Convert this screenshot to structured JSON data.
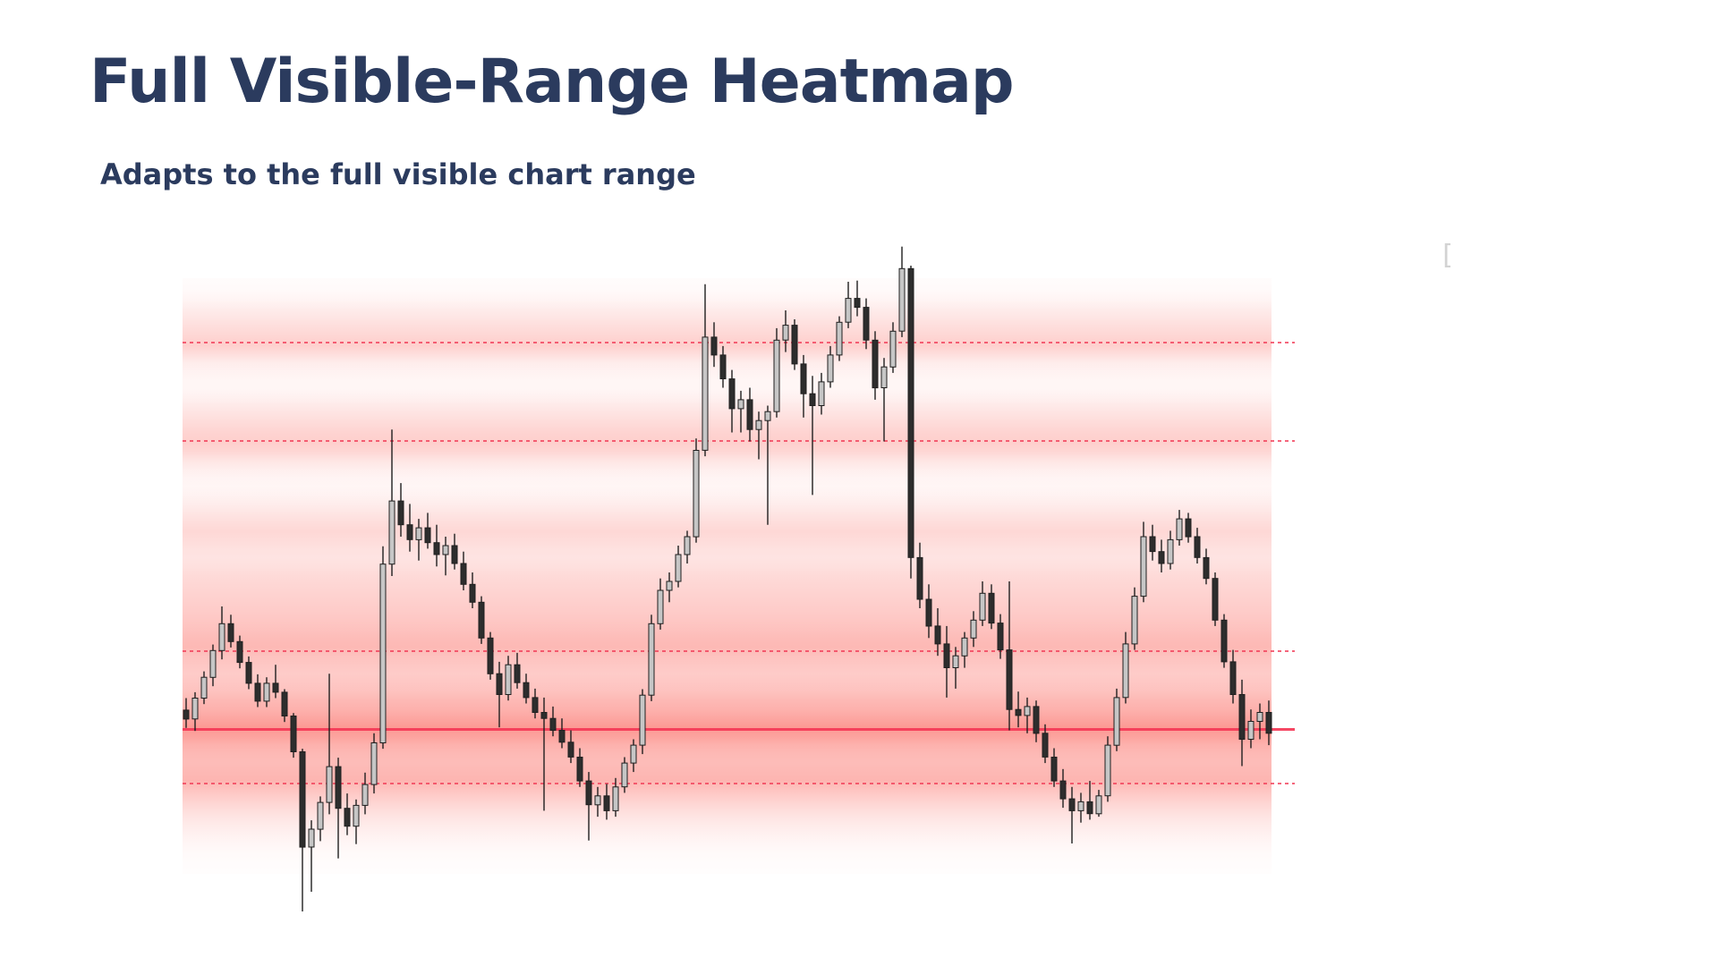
{
  "header": {
    "title": "Full Visible-Range Heatmap",
    "subtitle": "Adapts to the full visible chart range"
  },
  "misc": {
    "bracket_glyph": "["
  },
  "colors": {
    "title_text": "#2b3b5e",
    "heat_rgb": "250,70,60",
    "level_line_dotted": "rgba(242,63,90,0.8)",
    "level_line_solid": "rgba(244,56,86,0.92)",
    "candle_up_fill": "#c6c6c6",
    "candle_down_fill": "#2d2d2d",
    "candle_stroke": "#1f1f1f"
  },
  "chart_data": {
    "type": "heatmap",
    "overlay": "candlestick",
    "title": "Full Visible-Range Heatmap",
    "xlabel": "",
    "ylabel": "",
    "y_scale": "normalized 0-100 (no axis labels visible in chart)",
    "ylim": [
      0,
      100
    ],
    "grid": false,
    "legend": false,
    "levels": [
      {
        "price": 89.2,
        "style": "dotted"
      },
      {
        "price": 72.7,
        "style": "dotted"
      },
      {
        "price": 37.4,
        "style": "dotted"
      },
      {
        "price": 24.3,
        "style": "solid"
      },
      {
        "price": 15.2,
        "style": "dotted"
      }
    ],
    "heat_intensity_rows_top_to_bottom": [
      0.02,
      0.03,
      0.06,
      0.1,
      0.14,
      0.18,
      0.22,
      0.26,
      0.18,
      0.1,
      0.07,
      0.05,
      0.05,
      0.08,
      0.12,
      0.16,
      0.2,
      0.24,
      0.26,
      0.22,
      0.14,
      0.09,
      0.06,
      0.05,
      0.07,
      0.1,
      0.14,
      0.18,
      0.21,
      0.19,
      0.16,
      0.15,
      0.17,
      0.2,
      0.22,
      0.24,
      0.26,
      0.28,
      0.3,
      0.33,
      0.36,
      0.38,
      0.33,
      0.3,
      0.28,
      0.3,
      0.33,
      0.38,
      0.42,
      0.48,
      0.55,
      0.5,
      0.42,
      0.38,
      0.36,
      0.38,
      0.4,
      0.32,
      0.26,
      0.2,
      0.15,
      0.11,
      0.08,
      0.05,
      0.03,
      0.02,
      0.01
    ],
    "candles_ohlc": [
      [
        27.5,
        29.5,
        24.5,
        26.0
      ],
      [
        26.0,
        30.5,
        24.0,
        29.5
      ],
      [
        29.5,
        34.0,
        28.5,
        33.0
      ],
      [
        33.0,
        38.5,
        31.5,
        37.5
      ],
      [
        37.5,
        44.9,
        36.0,
        42.0
      ],
      [
        42.0,
        43.5,
        38.0,
        39.0
      ],
      [
        39.0,
        40.0,
        34.5,
        35.5
      ],
      [
        35.5,
        36.5,
        31.0,
        32.0
      ],
      [
        32.0,
        33.5,
        28.0,
        29.0
      ],
      [
        29.0,
        33.0,
        28.0,
        32.0
      ],
      [
        32.0,
        35.1,
        29.5,
        30.5
      ],
      [
        30.5,
        31.0,
        25.5,
        26.5
      ],
      [
        26.5,
        27.0,
        19.5,
        20.5
      ],
      [
        20.5,
        21.0,
        -6.3,
        4.5
      ],
      [
        4.5,
        9.0,
        -3.0,
        7.5
      ],
      [
        7.5,
        13.0,
        5.5,
        12.0
      ],
      [
        12.0,
        33.6,
        10.0,
        18.0
      ],
      [
        18.0,
        19.5,
        2.6,
        11.0
      ],
      [
        11.0,
        13.5,
        6.5,
        8.0
      ],
      [
        8.0,
        12.5,
        5.0,
        11.5
      ],
      [
        11.5,
        17.0,
        10.0,
        15.0
      ],
      [
        15.0,
        23.6,
        13.5,
        22.0
      ],
      [
        22.0,
        55.0,
        21.0,
        52.0
      ],
      [
        52.0,
        74.6,
        50.0,
        62.6
      ],
      [
        62.6,
        65.6,
        56.6,
        58.6
      ],
      [
        58.6,
        62.1,
        54.1,
        56.1
      ],
      [
        56.1,
        59.6,
        52.6,
        58.1
      ],
      [
        58.1,
        60.6,
        54.6,
        55.6
      ],
      [
        55.6,
        58.6,
        51.6,
        53.6
      ],
      [
        53.6,
        56.6,
        50.1,
        55.1
      ],
      [
        55.1,
        57.1,
        51.1,
        52.1
      ],
      [
        52.1,
        54.1,
        47.6,
        48.6
      ],
      [
        48.6,
        50.6,
        44.6,
        45.6
      ],
      [
        45.6,
        46.6,
        38.6,
        39.6
      ],
      [
        39.6,
        40.6,
        32.6,
        33.6
      ],
      [
        33.6,
        35.6,
        24.6,
        30.1
      ],
      [
        30.1,
        36.6,
        29.1,
        35.1
      ],
      [
        35.1,
        37.1,
        31.1,
        32.1
      ],
      [
        32.1,
        33.6,
        28.6,
        29.6
      ],
      [
        29.6,
        31.1,
        26.1,
        27.1
      ],
      [
        27.1,
        29.6,
        10.6,
        26.1
      ],
      [
        26.1,
        28.1,
        23.1,
        24.1
      ],
      [
        24.1,
        26.1,
        21.1,
        22.1
      ],
      [
        22.1,
        24.1,
        18.6,
        19.6
      ],
      [
        19.6,
        21.1,
        14.6,
        15.6
      ],
      [
        15.6,
        17.1,
        5.6,
        11.6
      ],
      [
        11.6,
        14.6,
        9.6,
        13.1
      ],
      [
        13.1,
        15.1,
        9.1,
        10.6
      ],
      [
        10.6,
        16.1,
        9.6,
        14.6
      ],
      [
        14.6,
        19.6,
        13.6,
        18.6
      ],
      [
        18.6,
        22.6,
        17.1,
        21.6
      ],
      [
        21.6,
        31.0,
        20.1,
        30.0
      ],
      [
        30.0,
        43.5,
        29.0,
        42.0
      ],
      [
        42.0,
        49.6,
        41.0,
        47.6
      ],
      [
        47.6,
        50.6,
        45.6,
        49.1
      ],
      [
        49.1,
        55.1,
        48.1,
        53.6
      ],
      [
        53.6,
        57.6,
        52.1,
        56.6
      ],
      [
        56.6,
        73.1,
        55.6,
        71.1
      ],
      [
        71.1,
        99.0,
        70.1,
        90.1
      ],
      [
        90.1,
        92.6,
        85.1,
        87.1
      ],
      [
        87.1,
        88.6,
        81.6,
        83.1
      ],
      [
        83.1,
        84.6,
        74.1,
        78.1
      ],
      [
        78.1,
        81.1,
        74.1,
        79.6
      ],
      [
        79.6,
        81.6,
        72.6,
        74.6
      ],
      [
        74.6,
        77.6,
        69.6,
        76.1
      ],
      [
        76.1,
        78.6,
        58.6,
        77.6
      ],
      [
        77.6,
        91.6,
        76.6,
        89.6
      ],
      [
        89.6,
        94.6,
        87.6,
        92.1
      ],
      [
        92.1,
        93.1,
        84.6,
        85.6
      ],
      [
        85.6,
        87.1,
        76.6,
        80.6
      ],
      [
        80.6,
        83.6,
        63.6,
        78.6
      ],
      [
        78.6,
        84.1,
        77.1,
        82.6
      ],
      [
        82.6,
        88.6,
        81.6,
        87.1
      ],
      [
        87.1,
        93.6,
        86.1,
        92.6
      ],
      [
        92.6,
        99.4,
        91.6,
        96.6
      ],
      [
        96.6,
        99.6,
        93.6,
        95.1
      ],
      [
        95.1,
        96.6,
        88.1,
        89.6
      ],
      [
        89.6,
        91.1,
        79.6,
        81.6
      ],
      [
        81.6,
        86.6,
        72.6,
        85.1
      ],
      [
        85.1,
        92.6,
        84.1,
        91.1
      ],
      [
        91.1,
        105.3,
        90.1,
        101.6
      ],
      [
        101.6,
        102.1,
        49.6,
        53.1
      ],
      [
        53.1,
        55.6,
        44.6,
        46.1
      ],
      [
        46.1,
        48.6,
        39.6,
        41.6
      ],
      [
        41.6,
        44.6,
        36.6,
        38.6
      ],
      [
        38.6,
        41.6,
        29.6,
        34.6
      ],
      [
        34.6,
        38.1,
        31.1,
        36.6
      ],
      [
        36.6,
        40.6,
        34.6,
        39.6
      ],
      [
        39.6,
        44.1,
        38.1,
        42.6
      ],
      [
        42.6,
        49.1,
        41.6,
        47.1
      ],
      [
        47.1,
        48.6,
        41.1,
        42.1
      ],
      [
        42.1,
        43.6,
        36.1,
        37.6
      ],
      [
        37.6,
        49.1,
        24.1,
        27.6
      ],
      [
        27.6,
        30.6,
        24.6,
        26.6
      ],
      [
        26.6,
        29.6,
        23.6,
        28.1
      ],
      [
        28.1,
        29.1,
        22.1,
        23.6
      ],
      [
        23.6,
        25.1,
        18.6,
        19.6
      ],
      [
        19.6,
        21.1,
        14.6,
        15.6
      ],
      [
        15.6,
        17.6,
        11.1,
        12.6
      ],
      [
        12.6,
        14.6,
        5.1,
        10.6
      ],
      [
        10.6,
        13.6,
        8.6,
        12.1
      ],
      [
        12.1,
        15.6,
        9.1,
        10.1
      ],
      [
        10.1,
        14.1,
        9.6,
        13.1
      ],
      [
        13.1,
        23.1,
        12.1,
        21.6
      ],
      [
        21.6,
        31.1,
        20.6,
        29.6
      ],
      [
        29.6,
        40.6,
        28.6,
        38.6
      ],
      [
        38.6,
        48.1,
        37.6,
        46.6
      ],
      [
        46.6,
        59.1,
        45.6,
        56.6
      ],
      [
        56.6,
        58.6,
        52.6,
        54.1
      ],
      [
        54.1,
        56.1,
        50.6,
        52.1
      ],
      [
        52.1,
        57.6,
        51.1,
        56.1
      ],
      [
        56.1,
        61.1,
        55.1,
        59.6
      ],
      [
        59.6,
        60.6,
        55.6,
        56.6
      ],
      [
        56.6,
        58.1,
        52.1,
        53.1
      ],
      [
        53.1,
        54.6,
        48.6,
        49.6
      ],
      [
        49.6,
        50.6,
        41.6,
        42.6
      ],
      [
        42.6,
        43.6,
        34.6,
        35.6
      ],
      [
        35.6,
        37.6,
        28.6,
        30.1
      ],
      [
        30.1,
        32.6,
        18.1,
        22.6
      ],
      [
        22.6,
        27.6,
        21.1,
        25.6
      ],
      [
        25.6,
        28.6,
        22.6,
        27.1
      ],
      [
        27.1,
        29.1,
        21.6,
        23.6
      ]
    ]
  }
}
